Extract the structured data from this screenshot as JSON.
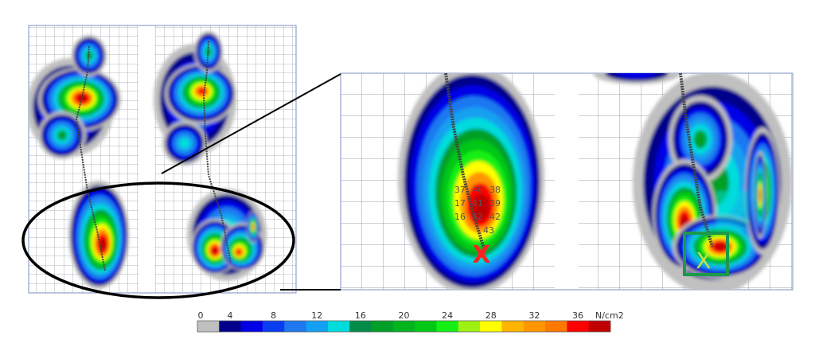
{
  "colorbar": {
    "ticks": [
      "0",
      "4",
      "8",
      "12",
      "16",
      "20",
      "24",
      "28",
      "32",
      "36"
    ],
    "unit": "N/cm2",
    "colors": [
      "#c0c0c0",
      "#00008b",
      "#0000e6",
      "#0a3cf0",
      "#1e78f0",
      "#14a0f0",
      "#00dcdc",
      "#008c46",
      "#00a028",
      "#00b41e",
      "#00c814",
      "#14f014",
      "#a0f014",
      "#ffff00",
      "#ffb400",
      "#ff9600",
      "#ff7800",
      "#ff0000",
      "#c00000"
    ]
  },
  "zoom_cells": {
    "row1": [
      "37",
      "40",
      "38"
    ],
    "row2": [
      "17",
      "41",
      "39"
    ],
    "row3": [
      "16",
      "42",
      "42"
    ],
    "row4": [
      "43"
    ]
  },
  "markers": {
    "peak_marker": "X",
    "peak_color": "#ff2020",
    "box_marker": "X",
    "box_color": "#1a9a4a"
  }
}
